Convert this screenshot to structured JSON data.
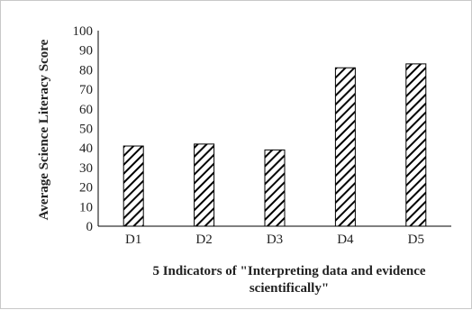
{
  "chart_data": {
    "type": "bar",
    "title": "",
    "categories": [
      "D1",
      "D2",
      "D3",
      "D4",
      "D5"
    ],
    "values": [
      41,
      42,
      39,
      81,
      83
    ],
    "ylabel": "Average Science Literacy Score",
    "xlabel_lines": [
      "5 Indicators of \"Interpreting data and evidence",
      "scientifically\""
    ],
    "ylim": [
      0,
      100
    ],
    "yticks": [
      0,
      10,
      20,
      30,
      40,
      50,
      60,
      70,
      80,
      90,
      100
    ],
    "grid": false,
    "bar_fill": "diagonal-hatch",
    "bar_color": "#000000"
  }
}
